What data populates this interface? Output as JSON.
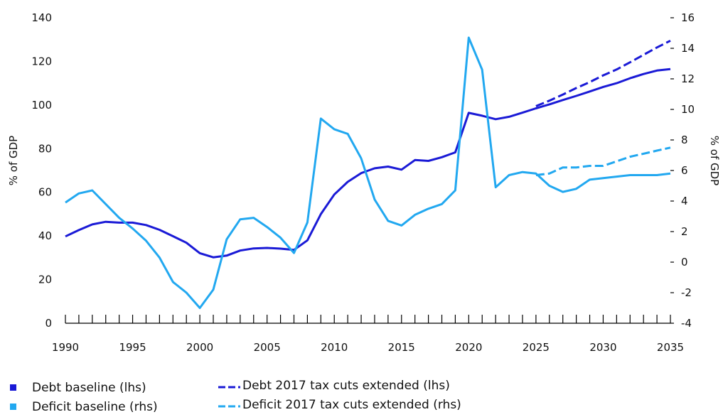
{
  "chart_data": {
    "type": "line",
    "title": "",
    "left_axis": {
      "label": "% of GDP",
      "ylim": [
        0,
        140
      ],
      "ticks": [
        0,
        20,
        40,
        60,
        80,
        100,
        120,
        140
      ]
    },
    "right_axis": {
      "label": "% of GDP",
      "ylim": [
        -4,
        16
      ],
      "ticks": [
        -4,
        -2,
        0,
        2,
        4,
        6,
        8,
        10,
        12,
        14,
        16
      ]
    },
    "x_axis": {
      "xlim": [
        1990,
        2035
      ],
      "labeled_ticks": [
        1990,
        1995,
        2000,
        2005,
        2010,
        2015,
        2020,
        2025,
        2030,
        2035
      ],
      "minor_tick_step": 1
    },
    "grid": false,
    "legend_position": "bottom",
    "colors": {
      "debt": "#1a1ad6",
      "deficit": "#22a8f0"
    },
    "series": [
      {
        "name": "Debt baseline (lhs)",
        "axis": "left",
        "style": "solid",
        "color": "#1a1ad6",
        "x": [
          1990,
          1991,
          1992,
          1993,
          1994,
          1995,
          1996,
          1997,
          1998,
          1999,
          2000,
          2001,
          2002,
          2003,
          2004,
          2005,
          2006,
          2007,
          2008,
          2009,
          2010,
          2011,
          2012,
          2013,
          2014,
          2015,
          2016,
          2017,
          2018,
          2019,
          2020,
          2021,
          2022,
          2023,
          2024,
          2025,
          2026,
          2027,
          2028,
          2029,
          2030,
          2031,
          2032,
          2033,
          2034,
          2035
        ],
        "values": [
          39.8,
          42.7,
          45.3,
          46.5,
          46.1,
          46.1,
          45.0,
          42.8,
          39.9,
          36.9,
          32.1,
          30.2,
          31.0,
          33.3,
          34.3,
          34.5,
          34.2,
          33.6,
          38.0,
          50.0,
          59.0,
          64.8,
          68.8,
          71.0,
          71.8,
          70.4,
          74.8,
          74.4,
          76.1,
          78.3,
          96.4,
          95.1,
          93.5,
          94.6,
          96.5,
          98.5,
          100.3,
          102.3,
          104.2,
          106.2,
          108.3,
          110.0,
          112.3,
          114.2,
          115.8,
          116.5
        ]
      },
      {
        "name": "Debt 2017 tax cuts extended (lhs)",
        "axis": "left",
        "style": "dashed",
        "color": "#1a1ad6",
        "x": [
          2025,
          2026,
          2027,
          2028,
          2029,
          2030,
          2031,
          2032,
          2033,
          2034,
          2035
        ],
        "values": [
          99.5,
          102.0,
          104.8,
          107.8,
          110.5,
          113.6,
          116.3,
          119.6,
          123.0,
          126.4,
          129.5
        ]
      },
      {
        "name": "Deficit baseline (rhs)",
        "axis": "right",
        "style": "solid",
        "color": "#22a8f0",
        "x": [
          1990,
          1991,
          1992,
          1993,
          1994,
          1995,
          1996,
          1997,
          1998,
          1999,
          2000,
          2001,
          2002,
          2003,
          2004,
          2005,
          2006,
          2007,
          2008,
          2009,
          2010,
          2011,
          2012,
          2013,
          2014,
          2015,
          2016,
          2017,
          2018,
          2019,
          2020,
          2021,
          2022,
          2023,
          2024,
          2025,
          2026,
          2027,
          2028,
          2029,
          2030,
          2031,
          2032,
          2033,
          2034,
          2035
        ],
        "values": [
          3.9,
          4.5,
          4.7,
          3.8,
          2.9,
          2.2,
          1.4,
          0.3,
          -1.3,
          -2.0,
          -3.0,
          -1.8,
          1.5,
          2.8,
          2.9,
          2.3,
          1.6,
          0.6,
          2.6,
          9.4,
          8.7,
          8.4,
          6.8,
          4.1,
          2.7,
          2.4,
          3.1,
          3.5,
          3.8,
          4.7,
          14.7,
          12.6,
          4.9,
          5.7,
          5.9,
          5.8,
          5.0,
          4.6,
          4.8,
          5.4,
          5.5,
          5.6,
          5.7,
          5.7,
          5.7,
          5.8
        ]
      },
      {
        "name": "Deficit 2017 tax cuts extended (rhs)",
        "axis": "right",
        "style": "dashed",
        "color": "#22a8f0",
        "x": [
          2025,
          2026,
          2027,
          2028,
          2029,
          2030,
          2031,
          2032,
          2033,
          2034,
          2035
        ],
        "values": [
          5.7,
          5.8,
          6.2,
          6.2,
          6.3,
          6.3,
          6.6,
          6.9,
          7.1,
          7.3,
          7.5
        ]
      }
    ]
  }
}
